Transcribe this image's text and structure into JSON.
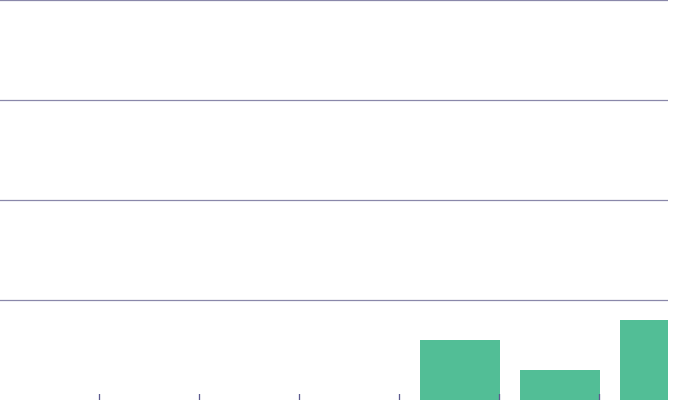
{
  "chart_data": {
    "type": "bar",
    "title": "",
    "xlabel": "",
    "ylabel": "",
    "categories": [
      "",
      "",
      "",
      "",
      "",
      "",
      ""
    ],
    "values": [
      0,
      0,
      0,
      0,
      60,
      30,
      80
    ],
    "ylim": [
      0,
      400
    ],
    "grid": true,
    "gridlines": [
      0,
      100,
      200,
      300
    ],
    "colors": {
      "bar": "#52be96",
      "grid": "#8a88aa",
      "axis": "#5d5b8f",
      "background": "#ffffff"
    }
  }
}
